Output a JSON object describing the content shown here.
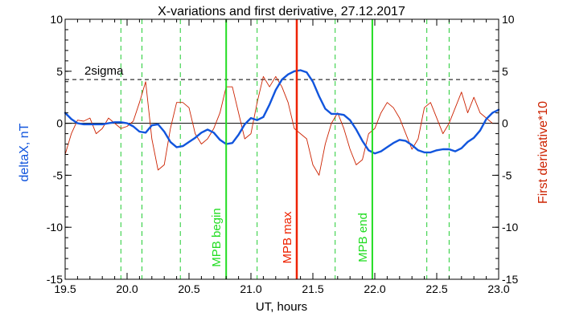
{
  "colors": {
    "background": "#ffffff",
    "axis": "#000000",
    "series_deltaX": "#1155dd",
    "series_derivative": "#cc2200",
    "dashed_markers": "#22cc33",
    "mpb_begin": "#22dd22",
    "mpb_end": "#22dd22",
    "mpb_max": "#ee2200",
    "sigma_line": "#000000"
  },
  "chart_data": {
    "type": "line",
    "title": "X-variations and first derivative, 27.12.2017",
    "xlabel": "UT, hours",
    "ylabel_left": "deltaX, nT",
    "ylabel_right": "First derivative*10",
    "xlim": [
      19.5,
      23.0
    ],
    "ylim_left": [
      -15,
      10
    ],
    "ylim_right": [
      -15,
      10
    ],
    "x_ticks": [
      "19.5",
      "20.0",
      "20.5",
      "21.0",
      "21.5",
      "22.0",
      "22.5",
      "23.0"
    ],
    "x_tick_values": [
      19.5,
      20.0,
      20.5,
      21.0,
      21.5,
      22.0,
      22.5,
      23.0
    ],
    "y_ticks": [
      "10",
      "5",
      "0",
      "-5",
      "-10",
      "-15"
    ],
    "y_tick_values": [
      10,
      5,
      0,
      -5,
      -10,
      -15
    ],
    "sigma_level": 4.2,
    "sigma_label": "2sigma",
    "zero_line": 0,
    "dashed_markers_x": [
      19.95,
      20.12,
      20.43,
      21.05,
      21.68,
      22.42,
      22.6
    ],
    "events": [
      {
        "label": "MPB begin",
        "x": 20.8,
        "color_key": "mpb_begin"
      },
      {
        "label": "MPB max",
        "x": 21.37,
        "color_key": "mpb_max"
      },
      {
        "label": "MPB end",
        "x": 21.98,
        "color_key": "mpb_end"
      }
    ],
    "series": [
      {
        "key": "deltaX",
        "axis": "left",
        "x": [
          19.5,
          19.55,
          19.6,
          19.65,
          19.7,
          19.75,
          19.8,
          19.85,
          19.9,
          19.95,
          20.0,
          20.05,
          20.1,
          20.15,
          20.2,
          20.25,
          20.3,
          20.35,
          20.4,
          20.45,
          20.5,
          20.55,
          20.6,
          20.65,
          20.7,
          20.75,
          20.8,
          20.85,
          20.9,
          20.95,
          21.0,
          21.05,
          21.1,
          21.15,
          21.2,
          21.25,
          21.3,
          21.35,
          21.4,
          21.45,
          21.5,
          21.55,
          21.6,
          21.65,
          21.7,
          21.75,
          21.8,
          21.85,
          21.9,
          21.95,
          22.0,
          22.05,
          22.1,
          22.15,
          22.2,
          22.25,
          22.3,
          22.35,
          22.4,
          22.45,
          22.5,
          22.55,
          22.6,
          22.65,
          22.7,
          22.75,
          22.8,
          22.85,
          22.9,
          22.95,
          23.0
        ],
        "y": [
          1.0,
          0.4,
          0.0,
          -0.1,
          -0.1,
          -0.1,
          -0.1,
          0.0,
          0.1,
          0.1,
          0.0,
          -0.3,
          -0.8,
          -0.9,
          -0.2,
          -0.1,
          -0.8,
          -1.8,
          -2.3,
          -2.2,
          -1.8,
          -1.4,
          -0.9,
          -0.6,
          -0.9,
          -1.6,
          -2.0,
          -1.9,
          -1.1,
          -0.1,
          0.5,
          0.3,
          0.6,
          1.8,
          3.2,
          4.2,
          4.7,
          5.0,
          5.1,
          4.9,
          4.0,
          2.6,
          1.4,
          0.9,
          0.9,
          0.8,
          0.3,
          -0.6,
          -1.7,
          -2.6,
          -2.9,
          -2.7,
          -2.3,
          -1.9,
          -1.6,
          -1.7,
          -2.1,
          -2.6,
          -2.8,
          -2.8,
          -2.6,
          -2.5,
          -2.5,
          -2.7,
          -2.4,
          -1.8,
          -1.4,
          -0.7,
          0.4,
          1.0,
          1.3
        ]
      },
      {
        "key": "derivative",
        "axis": "right",
        "x": [
          19.5,
          19.55,
          19.6,
          19.65,
          19.7,
          19.75,
          19.8,
          19.85,
          19.9,
          19.95,
          20.0,
          20.05,
          20.1,
          20.15,
          20.2,
          20.25,
          20.3,
          20.35,
          20.4,
          20.45,
          20.5,
          20.55,
          20.6,
          20.65,
          20.7,
          20.75,
          20.8,
          20.85,
          20.9,
          20.95,
          21.0,
          21.05,
          21.1,
          21.15,
          21.2,
          21.25,
          21.3,
          21.35,
          21.4,
          21.45,
          21.5,
          21.55,
          21.6,
          21.65,
          21.7,
          21.75,
          21.8,
          21.85,
          21.9,
          21.95,
          22.0,
          22.05,
          22.1,
          22.15,
          22.2,
          22.25,
          22.3,
          22.35,
          22.4,
          22.45,
          22.5,
          22.55,
          22.6,
          22.65,
          22.7,
          22.75,
          22.8,
          22.85,
          22.9,
          22.95,
          23.0
        ],
        "y": [
          -3.0,
          -1.0,
          0.3,
          0.2,
          0.5,
          -1.0,
          -0.5,
          0.5,
          0.0,
          -0.5,
          -0.3,
          0.2,
          2.0,
          4.0,
          -1.5,
          -4.5,
          -4.0,
          -0.5,
          2.0,
          2.0,
          1.5,
          -1.0,
          -2.0,
          -1.5,
          -0.5,
          1.0,
          3.5,
          3.5,
          1.0,
          -1.5,
          -1.0,
          2.0,
          4.5,
          3.5,
          4.5,
          3.5,
          2.0,
          -0.5,
          -1.0,
          -1.5,
          -4.0,
          -5.0,
          -2.0,
          0.0,
          1.0,
          -0.5,
          -2.5,
          -4.0,
          -3.5,
          -1.0,
          -0.5,
          1.0,
          2.0,
          1.5,
          0.5,
          -1.0,
          -2.5,
          -1.5,
          1.5,
          2.0,
          0.5,
          -1.0,
          0.0,
          1.5,
          3.0,
          1.0,
          2.5,
          1.0,
          0.5,
          0.0,
          0.0
        ]
      }
    ]
  }
}
